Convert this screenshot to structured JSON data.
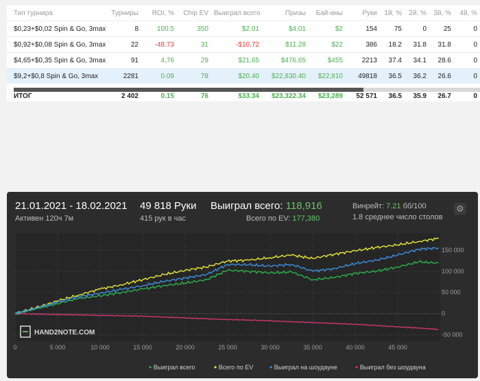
{
  "table": {
    "columns": [
      "Тип турнира",
      "Турниры",
      "ROI, %",
      "Chip EV",
      "Выиграл всего",
      "Призы",
      "Бай-ины",
      "Руки",
      "1й, %",
      "2й, %",
      "3й, %",
      "4й, %"
    ],
    "rows": [
      {
        "type": "$0,23+$0,02 Spin & Go, 3max",
        "tournaments": "8",
        "roi": "100.5",
        "chip_ev": "350",
        "won": "$2.01",
        "prizes": "$4.01",
        "buyins": "$2",
        "hands": "154",
        "p1": "75",
        "p2": "0",
        "p3": "25",
        "p4": "0"
      },
      {
        "type": "$0,92+$0,08 Spin & Go, 3max",
        "tournaments": "22",
        "roi": "-48.73",
        "chip_ev": "31",
        "won": "-$10.72",
        "prizes": "$11.28",
        "buyins": "$22",
        "hands": "386",
        "p1": "18.2",
        "p2": "31.8",
        "p3": "31.8",
        "p4": "0"
      },
      {
        "type": "$4,65+$0,35 Spin & Go, 3max",
        "tournaments": "91",
        "roi": "4.76",
        "chip_ev": "29",
        "won": "$21.65",
        "prizes": "$476.65",
        "buyins": "$455",
        "hands": "2213",
        "p1": "37.4",
        "p2": "34.1",
        "p3": "28.6",
        "p4": "0"
      },
      {
        "type": "$9,2+$0,8 Spin & Go, 3max",
        "tournaments": "2281",
        "roi": "0.09",
        "chip_ev": "78",
        "won": "$20.40",
        "prizes": "$22,830.40",
        "buyins": "$22,810",
        "hands": "49818",
        "p1": "36.5",
        "p2": "36.2",
        "p3": "26.6",
        "p4": "0"
      }
    ],
    "total": {
      "type": "ИТОГ",
      "tournaments": "2 402",
      "roi": "0.15",
      "chip_ev": "76",
      "won": "$33.34",
      "prizes": "$23,322.34",
      "buyins": "$23,289",
      "hands": "52 571",
      "p1": "36.5",
      "p2": "35.9",
      "p3": "26.7",
      "p4": "0"
    },
    "scroll_position": 0.75
  },
  "graph": {
    "date_range": "21.01.2021 - 18.02.2021",
    "active": "Активен 120ч 7м",
    "hands": "49 818 Руки",
    "hands_per_hour": "415 рук в час",
    "won_total_label": "Выиграл всего:",
    "won_total_value": "118,916",
    "ev_label": "Всего по EV:",
    "ev_value": "177,380",
    "winrate_label": "Винрейт:",
    "winrate_value": "7.21",
    "winrate_unit": "бб/100",
    "avg_tables": "1.8 среднее число столов",
    "logo": "HAND2NOTE.COM",
    "legend": [
      "Выиграл всего",
      "Всего по EV",
      "Выиграл на шоудауне",
      "Выиграл без шоудауна"
    ]
  },
  "chart_data": {
    "type": "line",
    "x_ticks": [
      0,
      5000,
      10000,
      15000,
      20000,
      25000,
      30000,
      35000,
      40000,
      45000
    ],
    "x_tick_labels": [
      "0",
      "5 000",
      "10 000",
      "15 000",
      "20 000",
      "25 000",
      "30 000",
      "35 000",
      "40 000",
      "45 000"
    ],
    "y_ticks": [
      -50000,
      0,
      50000,
      100000,
      150000
    ],
    "y_tick_labels": [
      "-50 000",
      "0",
      "50 000",
      "100 000",
      "150 000"
    ],
    "xlim": [
      0,
      50000
    ],
    "ylim": [
      -65000,
      190000
    ],
    "grid": true,
    "legend_position": "bottom",
    "colors": {
      "won": "#2bb24c",
      "ev": "#e8e83a",
      "showdown": "#3d8fe0",
      "no_showdown": "#d2366f"
    },
    "x": [
      0,
      2500,
      5000,
      7500,
      10000,
      12500,
      15000,
      17500,
      20000,
      22500,
      25000,
      27500,
      30000,
      32500,
      35000,
      37500,
      40000,
      42500,
      45000,
      47500,
      49818
    ],
    "series": [
      {
        "name": "Выиграл всего",
        "values": [
          0,
          12000,
          24000,
          36000,
          42000,
          50000,
          58000,
          66000,
          72000,
          80000,
          102000,
          100000,
          96000,
          98000,
          80000,
          85000,
          95000,
          100000,
          110000,
          122000,
          118916
        ]
      },
      {
        "name": "Всего по EV",
        "values": [
          0,
          14000,
          30000,
          44000,
          58000,
          68000,
          80000,
          92000,
          102000,
          110000,
          124000,
          126000,
          132000,
          138000,
          130000,
          140000,
          148000,
          156000,
          162000,
          170000,
          177380
        ]
      },
      {
        "name": "Выиграл на шоудауне",
        "values": [
          0,
          13000,
          27000,
          40000,
          48000,
          57000,
          66000,
          76000,
          84000,
          92000,
          116000,
          115000,
          112000,
          116000,
          100000,
          106000,
          118000,
          126000,
          138000,
          152000,
          155000
        ]
      },
      {
        "name": "Выиграл без шоудауна",
        "values": [
          0,
          -1000,
          -2000,
          -3000,
          -4000,
          -5000,
          -6000,
          -8000,
          -10000,
          -12000,
          -14000,
          -15000,
          -17000,
          -19000,
          -21000,
          -23000,
          -25000,
          -28000,
          -31000,
          -34000,
          -37000
        ]
      }
    ]
  }
}
